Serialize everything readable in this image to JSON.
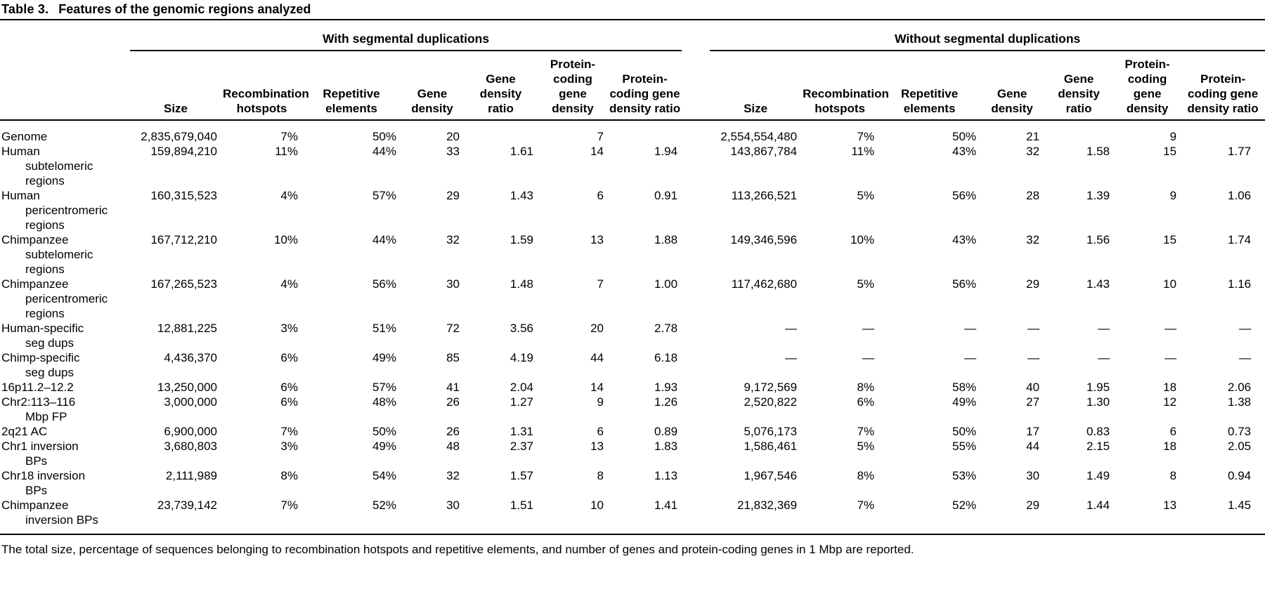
{
  "title": {
    "label": "Table 3.",
    "text": "Features of the genomic regions analyzed"
  },
  "table": {
    "groups": [
      {
        "label": "With segmental duplications"
      },
      {
        "label": "Without segmental duplications"
      }
    ],
    "columns": [
      "Size",
      "Recombination hotspots",
      "Repetitive elements",
      "Gene density",
      "Gene density ratio",
      "Protein-coding gene density",
      "Protein-coding gene density ratio"
    ],
    "rows": [
      {
        "label": "Genome",
        "with_sd": [
          "2,835,679,040",
          "7%",
          "50%",
          "20",
          "",
          "7",
          ""
        ],
        "without_sd": [
          "2,554,554,480",
          "7%",
          "50%",
          "21",
          "",
          "9",
          ""
        ]
      },
      {
        "label": "Human subtelomeric regions",
        "with_sd": [
          "159,894,210",
          "11%",
          "44%",
          "33",
          "1.61",
          "14",
          "1.94"
        ],
        "without_sd": [
          "143,867,784",
          "11%",
          "43%",
          "32",
          "1.58",
          "15",
          "1.77"
        ]
      },
      {
        "label": "Human pericentromeric regions",
        "with_sd": [
          "160,315,523",
          "4%",
          "57%",
          "29",
          "1.43",
          "6",
          "0.91"
        ],
        "without_sd": [
          "113,266,521",
          "5%",
          "56%",
          "28",
          "1.39",
          "9",
          "1.06"
        ]
      },
      {
        "label": "Chimpanzee subtelomeric regions",
        "with_sd": [
          "167,712,210",
          "10%",
          "44%",
          "32",
          "1.59",
          "13",
          "1.88"
        ],
        "without_sd": [
          "149,346,596",
          "10%",
          "43%",
          "32",
          "1.56",
          "15",
          "1.74"
        ]
      },
      {
        "label": "Chimpanzee pericentromeric regions",
        "with_sd": [
          "167,265,523",
          "4%",
          "56%",
          "30",
          "1.48",
          "7",
          "1.00"
        ],
        "without_sd": [
          "117,462,680",
          "5%",
          "56%",
          "29",
          "1.43",
          "10",
          "1.16"
        ]
      },
      {
        "label": "Human-specific seg dups",
        "with_sd": [
          "12,881,225",
          "3%",
          "51%",
          "72",
          "3.56",
          "20",
          "2.78"
        ],
        "without_sd": [
          "—",
          "—",
          "—",
          "—",
          "—",
          "—",
          "—"
        ]
      },
      {
        "label": "Chimp-specific seg dups",
        "with_sd": [
          "4,436,370",
          "6%",
          "49%",
          "85",
          "4.19",
          "44",
          "6.18"
        ],
        "without_sd": [
          "—",
          "—",
          "—",
          "—",
          "—",
          "—",
          "—"
        ]
      },
      {
        "label": "16p11.2–12.2",
        "with_sd": [
          "13,250,000",
          "6%",
          "57%",
          "41",
          "2.04",
          "14",
          "1.93"
        ],
        "without_sd": [
          "9,172,569",
          "8%",
          "58%",
          "40",
          "1.95",
          "18",
          "2.06"
        ]
      },
      {
        "label": "Chr2:113–116 Mbp FP",
        "with_sd": [
          "3,000,000",
          "6%",
          "48%",
          "26",
          "1.27",
          "9",
          "1.26"
        ],
        "without_sd": [
          "2,520,822",
          "6%",
          "49%",
          "27",
          "1.30",
          "12",
          "1.38"
        ]
      },
      {
        "label": "2q21 AC",
        "with_sd": [
          "6,900,000",
          "7%",
          "50%",
          "26",
          "1.31",
          "6",
          "0.89"
        ],
        "without_sd": [
          "5,076,173",
          "7%",
          "50%",
          "17",
          "0.83",
          "6",
          "0.73"
        ]
      },
      {
        "label": "Chr1 inversion BPs",
        "with_sd": [
          "3,680,803",
          "3%",
          "49%",
          "48",
          "2.37",
          "13",
          "1.83"
        ],
        "without_sd": [
          "1,586,461",
          "5%",
          "55%",
          "44",
          "2.15",
          "18",
          "2.05"
        ]
      },
      {
        "label": "Chr18 inversion BPs",
        "with_sd": [
          "2,111,989",
          "8%",
          "54%",
          "32",
          "1.57",
          "8",
          "1.13"
        ],
        "without_sd": [
          "1,967,546",
          "8%",
          "53%",
          "30",
          "1.49",
          "8",
          "0.94"
        ]
      },
      {
        "label": "Chimpanzee inversion BPs",
        "with_sd": [
          "23,739,142",
          "7%",
          "52%",
          "30",
          "1.51",
          "10",
          "1.41"
        ],
        "without_sd": [
          "21,832,369",
          "7%",
          "52%",
          "29",
          "1.44",
          "13",
          "1.45"
        ]
      }
    ]
  },
  "footnote": "The total size, percentage of sequences belonging to recombination hotspots and repetitive elements, and number of genes and protein-coding genes in 1 Mbp are reported.",
  "colors": {
    "text": "#000000",
    "background": "#ffffff",
    "rule": "#000000"
  }
}
